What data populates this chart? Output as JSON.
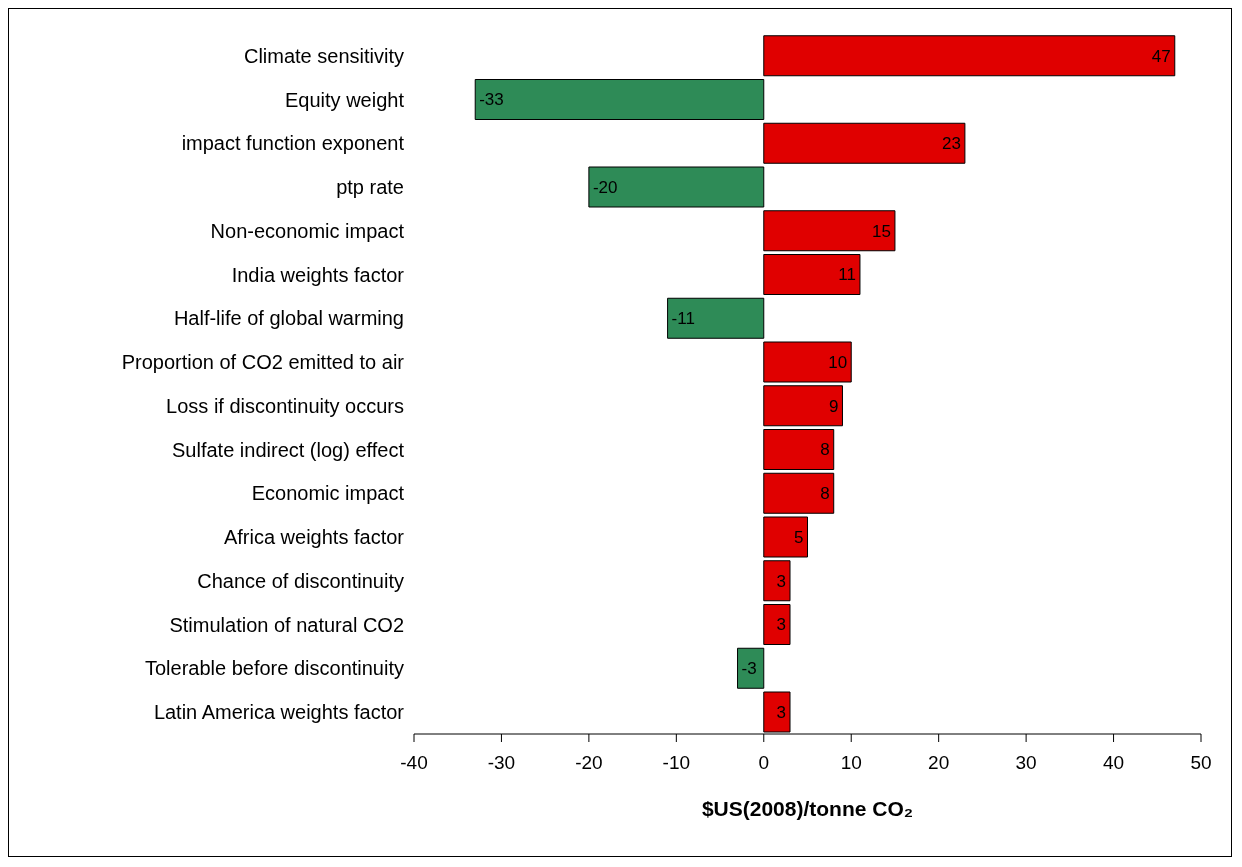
{
  "chart_data": {
    "type": "bar",
    "orientation": "horizontal",
    "xlabel": "$US(2008)/tonne CO₂",
    "categories": [
      "Climate sensitivity",
      "Equity weight",
      "impact function  exponent",
      "ptp rate",
      "Non-economic impact",
      "India weights factor",
      "Half-life of global  warming",
      "Proportion of CO2 emitted to air",
      "Loss if discontinuity  occurs",
      "Sulfate indirect (log) effect",
      "Economic impact",
      "Africa weights  factor",
      "Chance of discontinuity",
      "Stimulation of natural CO2",
      "Tolerable before discontinuity",
      "Latin America weights factor"
    ],
    "values": [
      47,
      -33,
      23,
      -20,
      15,
      11,
      -11,
      10,
      9,
      8,
      8,
      5,
      3,
      3,
      -3,
      3
    ],
    "colors": [
      "#e00000",
      "#2e8b57",
      "#e00000",
      "#2e8b57",
      "#e00000",
      "#e00000",
      "#2e8b57",
      "#e00000",
      "#e00000",
      "#e00000",
      "#e00000",
      "#e00000",
      "#e00000",
      "#e00000",
      "#2e8b57",
      "#e00000"
    ],
    "xlim": [
      -40,
      50
    ],
    "xticks": [
      -40,
      -30,
      -20,
      -10,
      0,
      10,
      20,
      30,
      40,
      50
    ],
    "data_labels": true
  }
}
